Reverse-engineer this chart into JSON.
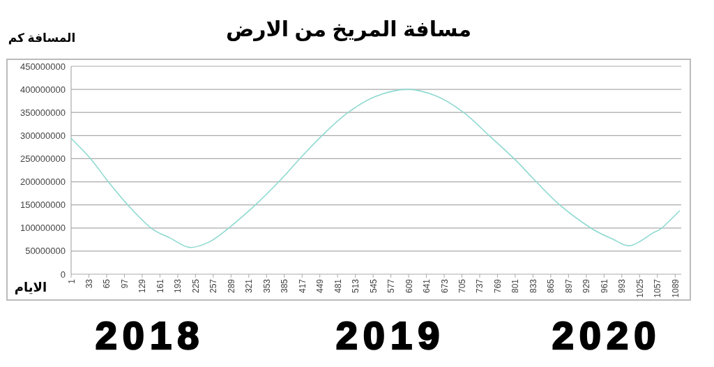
{
  "chart_data": {
    "type": "line",
    "title": "مسافة المريخ من الارض",
    "ylabel": "المسافة كم",
    "xlabel": "الايام",
    "annotations": [
      "2018",
      "2019",
      "2020"
    ],
    "x": [
      1,
      36,
      68,
      103,
      145,
      180,
      214,
      250,
      285,
      333,
      375,
      413,
      453,
      500,
      550,
      607,
      660,
      708,
      754,
      799,
      839,
      881,
      937,
      975,
      1009,
      1050,
      1065,
      1097
    ],
    "series": [
      {
        "color": "#8ed9d1",
        "values": [
          294000000,
          250000000,
          200000000,
          150000000,
          100000000,
          78000000,
          58000000,
          70000000,
          100000000,
          150000000,
          200000000,
          250000000,
          300000000,
          350000000,
          385000000,
          400000000,
          385000000,
          350000000,
          300000000,
          250000000,
          200000000,
          150000000,
          100000000,
          77000000,
          62000000,
          90000000,
          100000000,
          137000000
        ]
      }
    ],
    "xlim": [
      1,
      1100
    ],
    "xticks": [
      1,
      33,
      65,
      97,
      129,
      161,
      193,
      225,
      257,
      289,
      321,
      353,
      385,
      417,
      449,
      481,
      513,
      545,
      577,
      609,
      641,
      673,
      705,
      737,
      769,
      801,
      833,
      865,
      897,
      929,
      961,
      993,
      1025,
      1057,
      1089
    ],
    "ylim": [
      0,
      450000000
    ],
    "yticks": [
      0,
      50000000,
      100000000,
      150000000,
      200000000,
      250000000,
      300000000,
      350000000,
      400000000,
      450000000
    ],
    "grid": "y",
    "marker": "none",
    "line_style": "solid"
  }
}
